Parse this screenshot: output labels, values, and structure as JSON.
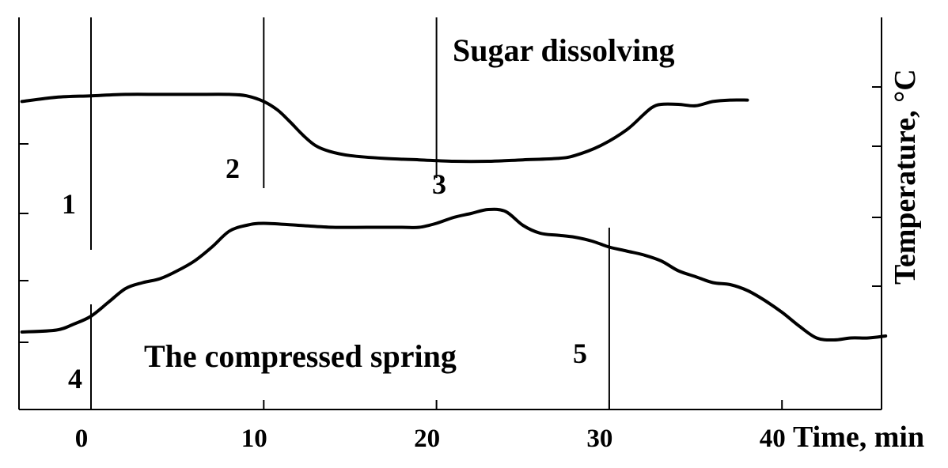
{
  "chart_data": {
    "type": "line",
    "xlabel": "Time, min",
    "ylabel": "Temperature, °C",
    "xlim": [
      -4,
      46
    ],
    "x_ticks": [
      0,
      10,
      20,
      30,
      40
    ],
    "x_tick_labels": [
      "0",
      "10",
      "20",
      "30",
      "40"
    ],
    "y_tick_count_left": 4,
    "y_tick_count_right": 4,
    "grid": false,
    "series": [
      {
        "name": "Sugar dissolving",
        "x": [
          -4,
          -2,
          0,
          2,
          4,
          6,
          8,
          9,
          10,
          10.8,
          11.5,
          12.3,
          13,
          13.8,
          15,
          17,
          19,
          21,
          23,
          25,
          27,
          28,
          29.5,
          31,
          32,
          32.5,
          33,
          34,
          35,
          36,
          37,
          38
        ],
        "y": [
          0.62,
          0.65,
          0.66,
          0.67,
          0.67,
          0.67,
          0.67,
          0.66,
          0.62,
          0.56,
          0.48,
          0.38,
          0.31,
          0.27,
          0.24,
          0.22,
          0.21,
          0.2,
          0.2,
          0.21,
          0.22,
          0.24,
          0.31,
          0.42,
          0.53,
          0.58,
          0.6,
          0.6,
          0.59,
          0.62,
          0.63,
          0.63
        ]
      },
      {
        "name": "The compressed spring",
        "x": [
          -4,
          -2,
          -1,
          0,
          1,
          2,
          3,
          4,
          5,
          6,
          7,
          8,
          9,
          10,
          12,
          14,
          16,
          18,
          19,
          20,
          21,
          22,
          23,
          24,
          25,
          26,
          27,
          28,
          29,
          30,
          31,
          32,
          33,
          34,
          35,
          36,
          37,
          38,
          39,
          40,
          41,
          42,
          43,
          44,
          45,
          46
        ],
        "y": [
          0.2,
          0.21,
          0.24,
          0.28,
          0.35,
          0.42,
          0.45,
          0.47,
          0.51,
          0.56,
          0.63,
          0.71,
          0.74,
          0.75,
          0.74,
          0.73,
          0.73,
          0.73,
          0.73,
          0.75,
          0.78,
          0.8,
          0.82,
          0.81,
          0.74,
          0.7,
          0.69,
          0.68,
          0.66,
          0.63,
          0.61,
          0.59,
          0.56,
          0.51,
          0.48,
          0.45,
          0.44,
          0.41,
          0.36,
          0.3,
          0.23,
          0.17,
          0.16,
          0.17,
          0.17,
          0.18
        ]
      }
    ],
    "markers": [
      {
        "label": "1",
        "x": 0,
        "curve": "Sugar dissolving"
      },
      {
        "label": "2",
        "x": 10,
        "curve": "Sugar dissolving"
      },
      {
        "label": "3",
        "x": 20,
        "curve": "Sugar dissolving"
      },
      {
        "label": "4",
        "x": 0,
        "curve": "The compressed spring"
      },
      {
        "label": "5",
        "x": 30,
        "curve": "The compressed spring"
      }
    ]
  }
}
